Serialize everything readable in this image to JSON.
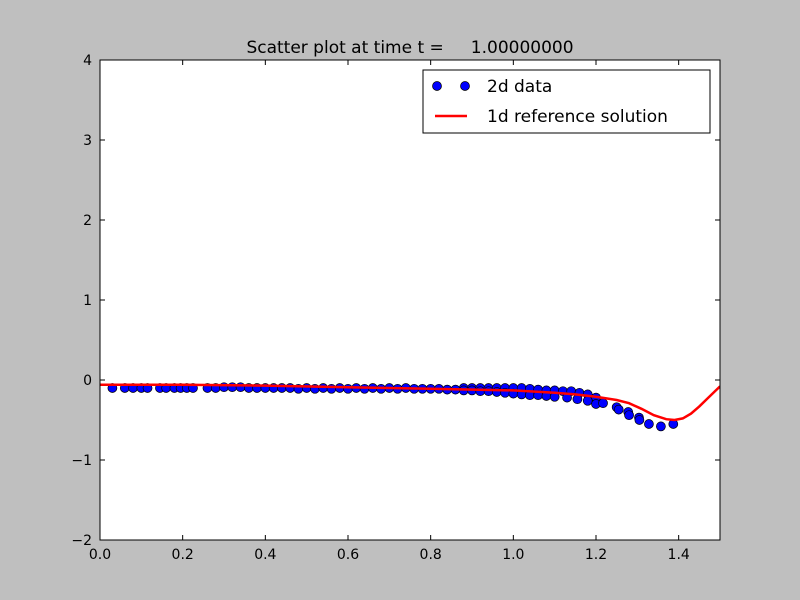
{
  "chart_data": {
    "type": "scatter",
    "title": "Scatter plot at time t =     1.00000000",
    "xlabel": "",
    "ylabel": "",
    "xlim": [
      0.0,
      1.5
    ],
    "ylim": [
      -2,
      4
    ],
    "xticks": [
      "0.0",
      "0.2",
      "0.4",
      "0.6",
      "0.8",
      "1.0",
      "1.2",
      "1.4"
    ],
    "xtick_values": [
      0.0,
      0.2,
      0.4,
      0.6,
      0.8,
      1.0,
      1.2,
      1.4
    ],
    "yticks": [
      "−2",
      "−1",
      "0",
      "1",
      "2",
      "3",
      "4"
    ],
    "ytick_values": [
      -2,
      -1,
      0,
      1,
      2,
      3,
      4
    ],
    "grid": false,
    "legend_position": "top-right",
    "series": [
      {
        "name": "2d data",
        "kind": "scatter",
        "color": "#0000ff",
        "points": [
          [
            0.03,
            -0.1
          ],
          [
            0.06,
            -0.1
          ],
          [
            0.08,
            -0.1
          ],
          [
            0.1,
            -0.1
          ],
          [
            0.115,
            -0.1
          ],
          [
            0.145,
            -0.1
          ],
          [
            0.16,
            -0.1
          ],
          [
            0.18,
            -0.1
          ],
          [
            0.195,
            -0.1
          ],
          [
            0.21,
            -0.1
          ],
          [
            0.225,
            -0.1
          ],
          [
            0.26,
            -0.1
          ],
          [
            0.28,
            -0.1
          ],
          [
            0.3,
            -0.09
          ],
          [
            0.32,
            -0.09
          ],
          [
            0.34,
            -0.09
          ],
          [
            0.36,
            -0.1
          ],
          [
            0.38,
            -0.1
          ],
          [
            0.4,
            -0.1
          ],
          [
            0.42,
            -0.1
          ],
          [
            0.44,
            -0.1
          ],
          [
            0.46,
            -0.1
          ],
          [
            0.48,
            -0.11
          ],
          [
            0.5,
            -0.1
          ],
          [
            0.52,
            -0.11
          ],
          [
            0.54,
            -0.1
          ],
          [
            0.56,
            -0.11
          ],
          [
            0.58,
            -0.1
          ],
          [
            0.6,
            -0.11
          ],
          [
            0.62,
            -0.1
          ],
          [
            0.64,
            -0.11
          ],
          [
            0.66,
            -0.1
          ],
          [
            0.68,
            -0.11
          ],
          [
            0.7,
            -0.1
          ],
          [
            0.72,
            -0.11
          ],
          [
            0.74,
            -0.1
          ],
          [
            0.76,
            -0.11
          ],
          [
            0.78,
            -0.11
          ],
          [
            0.8,
            -0.11
          ],
          [
            0.82,
            -0.11
          ],
          [
            0.84,
            -0.12
          ],
          [
            0.86,
            -0.12
          ],
          [
            0.88,
            -0.1
          ],
          [
            0.9,
            -0.1
          ],
          [
            0.92,
            -0.1
          ],
          [
            0.94,
            -0.1
          ],
          [
            0.96,
            -0.1
          ],
          [
            0.98,
            -0.1
          ],
          [
            1.0,
            -0.1
          ],
          [
            1.02,
            -0.1
          ],
          [
            1.04,
            -0.11
          ],
          [
            1.06,
            -0.12
          ],
          [
            1.08,
            -0.13
          ],
          [
            1.1,
            -0.13
          ],
          [
            1.12,
            -0.14
          ],
          [
            1.14,
            -0.14
          ],
          [
            1.16,
            -0.16
          ],
          [
            1.18,
            -0.18
          ],
          [
            1.2,
            -0.22
          ],
          [
            0.88,
            -0.13
          ],
          [
            0.9,
            -0.13
          ],
          [
            0.92,
            -0.14
          ],
          [
            0.94,
            -0.14
          ],
          [
            0.96,
            -0.15
          ],
          [
            0.98,
            -0.16
          ],
          [
            1.0,
            -0.17
          ],
          [
            1.02,
            -0.18
          ],
          [
            1.04,
            -0.19
          ],
          [
            1.06,
            -0.19
          ],
          [
            1.08,
            -0.2
          ],
          [
            1.1,
            -0.21
          ],
          [
            1.13,
            -0.22
          ],
          [
            1.155,
            -0.24
          ],
          [
            1.18,
            -0.26
          ],
          [
            1.2,
            -0.3
          ],
          [
            1.217,
            -0.29
          ],
          [
            1.25,
            -0.34
          ],
          [
            1.255,
            -0.37
          ],
          [
            1.278,
            -0.4
          ],
          [
            1.28,
            -0.44
          ],
          [
            1.304,
            -0.47
          ],
          [
            1.305,
            -0.5
          ],
          [
            1.328,
            -0.55
          ],
          [
            1.357,
            -0.58
          ],
          [
            1.387,
            -0.55
          ]
        ]
      },
      {
        "name": "1d reference solution",
        "kind": "line",
        "color": "#ff0000",
        "points": [
          [
            0.0,
            -0.06
          ],
          [
            0.2,
            -0.06
          ],
          [
            0.4,
            -0.07
          ],
          [
            0.6,
            -0.09
          ],
          [
            0.8,
            -0.11
          ],
          [
            1.0,
            -0.13
          ],
          [
            1.1,
            -0.16
          ],
          [
            1.15,
            -0.18
          ],
          [
            1.2,
            -0.21
          ],
          [
            1.25,
            -0.25
          ],
          [
            1.28,
            -0.29
          ],
          [
            1.31,
            -0.36
          ],
          [
            1.34,
            -0.44
          ],
          [
            1.37,
            -0.49
          ],
          [
            1.39,
            -0.5
          ],
          [
            1.41,
            -0.48
          ],
          [
            1.43,
            -0.42
          ],
          [
            1.45,
            -0.33
          ],
          [
            1.47,
            -0.23
          ],
          [
            1.49,
            -0.13
          ],
          [
            1.5,
            -0.08
          ]
        ]
      }
    ]
  }
}
